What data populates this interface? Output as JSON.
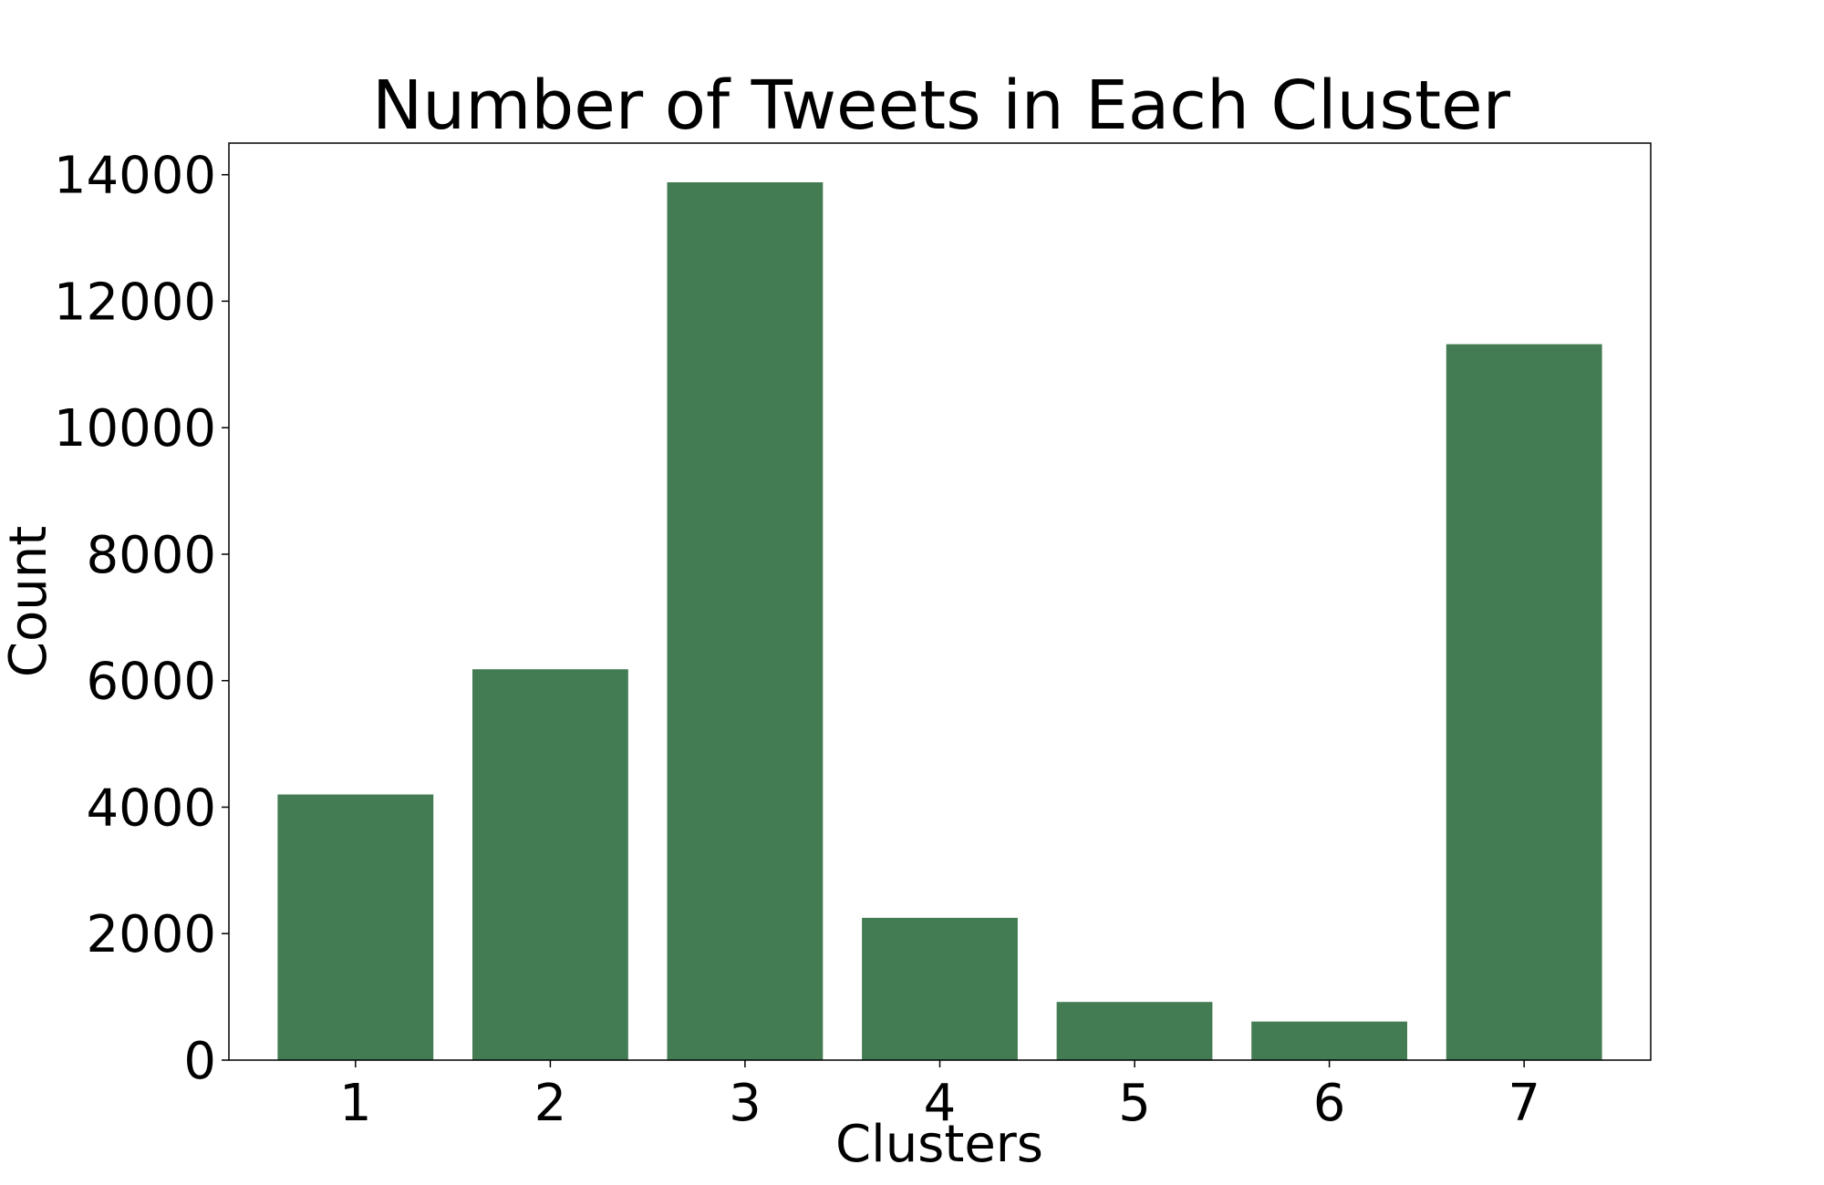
{
  "chart_data": {
    "type": "bar",
    "title": "Number of Tweets in Each Cluster",
    "xlabel": "Clusters",
    "ylabel": "Count",
    "categories": [
      "1",
      "2",
      "3",
      "4",
      "5",
      "6",
      "7"
    ],
    "values": [
      4200,
      6180,
      13880,
      2250,
      920,
      610,
      11320
    ],
    "ylim": [
      0,
      14500
    ],
    "yticks": [
      0,
      2000,
      4000,
      6000,
      8000,
      10000,
      12000,
      14000
    ],
    "ytick_labels": [
      "0",
      "2000",
      "4000",
      "6000",
      "8000",
      "10000",
      "12000",
      "14000"
    ],
    "bar_color": "#437c52",
    "grid": false,
    "legend": "none"
  }
}
